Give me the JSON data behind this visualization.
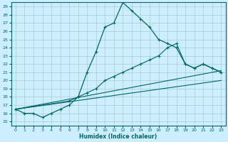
{
  "xlabel": "Humidex (Indice chaleur)",
  "bg_color": "#cceeff",
  "grid_color": "#aacccc",
  "line_color": "#006666",
  "xlim": [
    -0.5,
    23.5
  ],
  "ylim": [
    14.5,
    29.5
  ],
  "xticks": [
    0,
    1,
    2,
    3,
    4,
    5,
    6,
    7,
    8,
    9,
    10,
    11,
    12,
    13,
    14,
    15,
    16,
    17,
    18,
    19,
    20,
    21,
    22,
    23
  ],
  "yticks": [
    15,
    16,
    17,
    18,
    19,
    20,
    21,
    22,
    23,
    24,
    25,
    26,
    27,
    28,
    29
  ],
  "series1_x": [
    0,
    1,
    2,
    3,
    4,
    5,
    6,
    7,
    8,
    9,
    10,
    11,
    12,
    13,
    14,
    15,
    16,
    17,
    18,
    19,
    20,
    21,
    22,
    23
  ],
  "series1_y": [
    16.5,
    16.0,
    16.0,
    15.5,
    16.0,
    16.5,
    17.0,
    18.0,
    21.0,
    23.5,
    26.5,
    27.0,
    29.5,
    28.5,
    27.5,
    26.5,
    25.0,
    24.5,
    24.0,
    22.0,
    21.5,
    22.0,
    21.5,
    21.0
  ],
  "series2_x": [
    0,
    6,
    7,
    8,
    9,
    10,
    11,
    12,
    13,
    14,
    15,
    16,
    17,
    18,
    19,
    20,
    21,
    22,
    23
  ],
  "series2_y": [
    16.5,
    17.5,
    18.0,
    18.5,
    19.0,
    20.0,
    20.5,
    21.0,
    21.5,
    22.0,
    22.5,
    23.0,
    24.0,
    24.5,
    22.0,
    21.5,
    22.0,
    21.5,
    21.0
  ],
  "series3_x": [
    0,
    23
  ],
  "series3_y": [
    16.5,
    20.0
  ],
  "series4_x": [
    0,
    23
  ],
  "series4_y": [
    16.5,
    21.2
  ]
}
